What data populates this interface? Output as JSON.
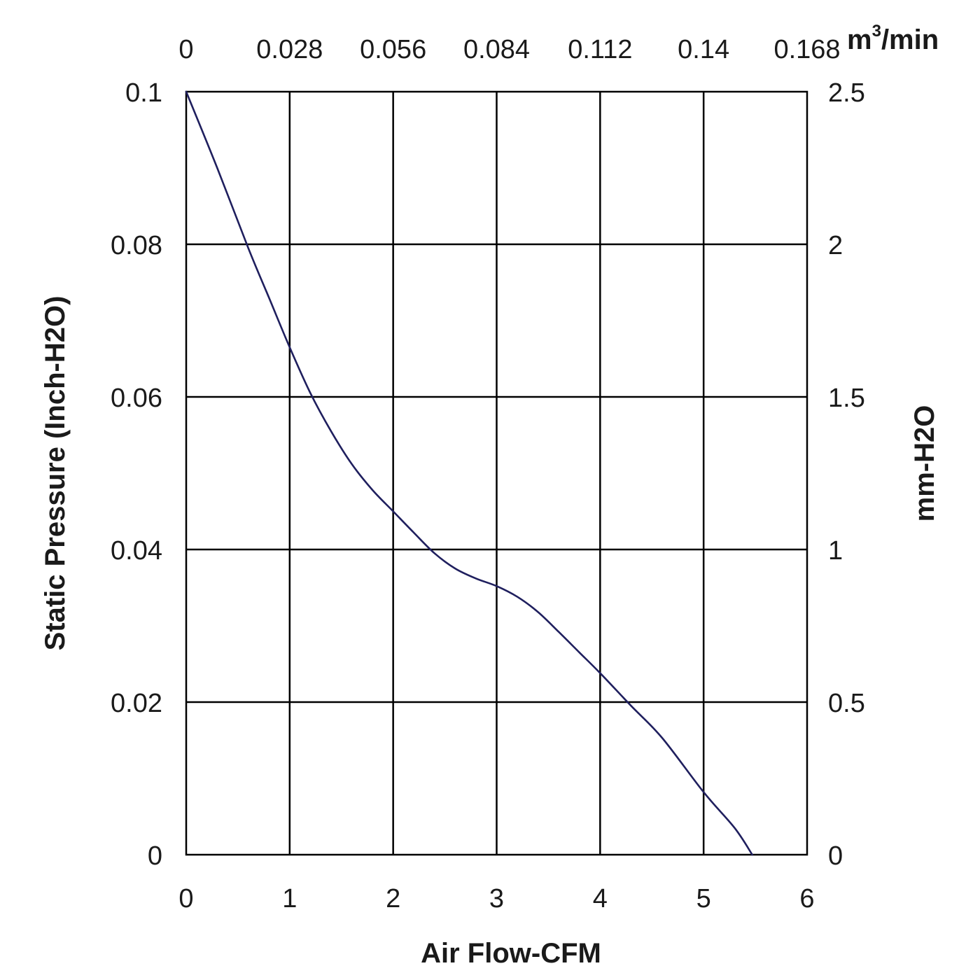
{
  "chart_data": {
    "type": "line",
    "title": "",
    "xlabel": "Air Flow-CFM",
    "ylabel": "Static Pressure (Inch-H2O)",
    "xlim": [
      0,
      6
    ],
    "ylim": [
      0,
      0.1
    ],
    "grid": true,
    "x_ticks": [
      "0",
      "1",
      "2",
      "3",
      "4",
      "5",
      "6"
    ],
    "y_ticks": [
      "0",
      "0.02",
      "0.04",
      "0.06",
      "0.08",
      "0.1"
    ],
    "secondary_x": {
      "unit_prefix": "m",
      "unit_superscript": "3",
      "unit_suffix": "/min",
      "ticks": [
        "0",
        "0.028",
        "0.056",
        "0.084",
        "0.112",
        "0.14",
        "0.168"
      ]
    },
    "secondary_y": {
      "label": "mm-H2O",
      "ticks": [
        "0",
        "0.5",
        "1",
        "1.5",
        "2",
        "2.5"
      ]
    },
    "series": [
      {
        "color": "#1f1f5e",
        "x": [
          0,
          0.3,
          0.6,
          0.8,
          1.0,
          1.2,
          1.4,
          1.6,
          1.8,
          2.0,
          2.2,
          2.4,
          2.6,
          2.8,
          3.0,
          3.2,
          3.4,
          3.6,
          3.8,
          4.0,
          4.3,
          4.6,
          5.0,
          5.3,
          5.47
        ],
        "y": [
          0.1,
          0.09,
          0.0795,
          0.073,
          0.0665,
          0.0605,
          0.0555,
          0.0512,
          0.0478,
          0.045,
          0.0422,
          0.0395,
          0.0375,
          0.0362,
          0.0352,
          0.0338,
          0.0318,
          0.0292,
          0.0265,
          0.0238,
          0.0195,
          0.0153,
          0.0082,
          0.0035,
          0.0
        ]
      }
    ]
  }
}
